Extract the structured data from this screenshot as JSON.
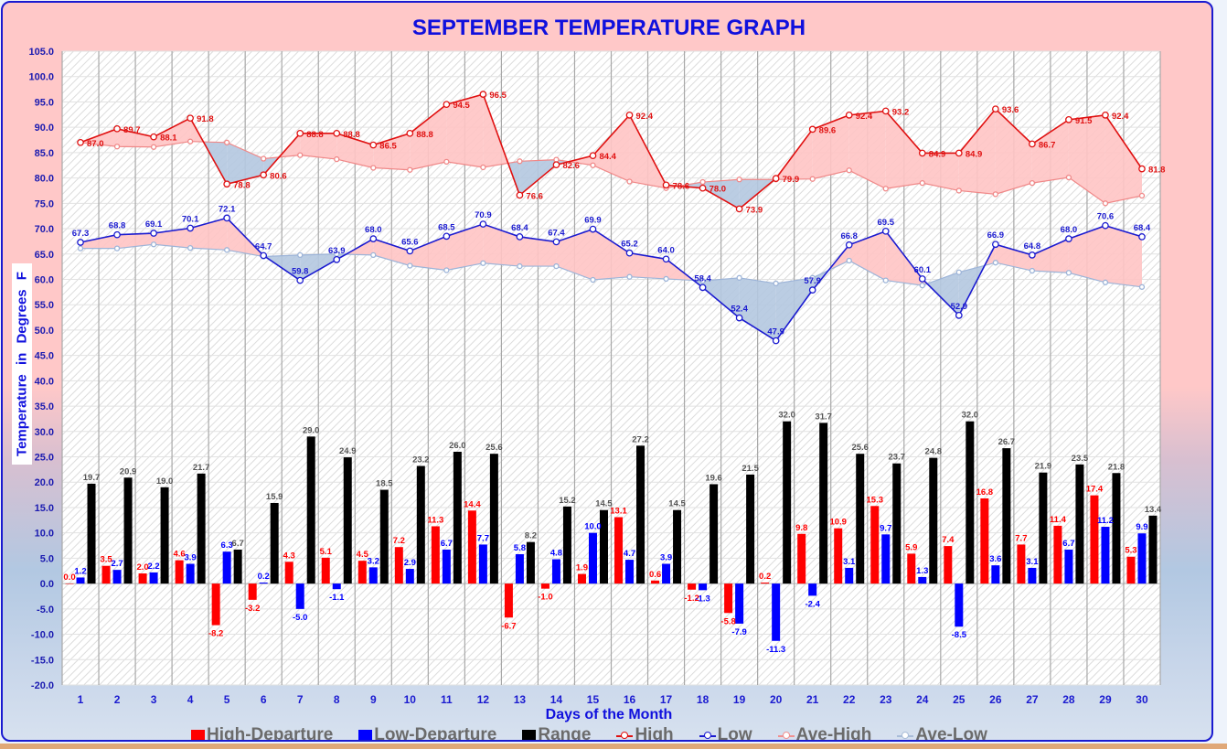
{
  "chart_data": {
    "type": "bar+line",
    "title": "SEPTEMBER TEMPERATURE GRAPH",
    "xlabel": "Days of the Month",
    "ylabel": "Temperature in Degrees F",
    "ylim": [
      -20,
      105
    ],
    "ytick_step": 5,
    "yticks": [
      "105.0",
      "100.0",
      "95.0",
      "90.0",
      "85.0",
      "80.0",
      "75.0",
      "70.0",
      "65.0",
      "60.0",
      "55.0",
      "50.0",
      "45.0",
      "40.0",
      "35.0",
      "30.0",
      "25.0",
      "20.0",
      "15.0",
      "10.0",
      "5.0",
      "0.0",
      "-5.0",
      "-10.0",
      "-15.0",
      "-20.0"
    ],
    "categories": [
      "1",
      "2",
      "3",
      "4",
      "5",
      "6",
      "7",
      "8",
      "9",
      "10",
      "11",
      "12",
      "13",
      "14",
      "15",
      "16",
      "17",
      "18",
      "19",
      "20",
      "21",
      "22",
      "23",
      "24",
      "25",
      "26",
      "27",
      "28",
      "29",
      "30"
    ],
    "grid": true,
    "legend_position": "bottom",
    "series": [
      {
        "name": "High-Departure",
        "kind": "bar",
        "color": "#ff0000",
        "values": [
          0.0,
          3.5,
          2.0,
          4.6,
          -8.2,
          -3.2,
          4.3,
          5.1,
          4.5,
          7.2,
          11.3,
          14.4,
          -6.7,
          -1.0,
          1.9,
          13.1,
          0.6,
          -1.2,
          -5.8,
          0.2,
          9.8,
          10.9,
          15.3,
          5.9,
          7.4,
          16.8,
          7.7,
          11.4,
          17.4,
          5.3
        ]
      },
      {
        "name": "Low-Departure",
        "kind": "bar",
        "color": "#0000ff",
        "values": [
          1.2,
          2.7,
          2.2,
          3.9,
          6.3,
          0.2,
          -5.0,
          -1.1,
          3.2,
          2.9,
          6.7,
          7.7,
          5.8,
          4.8,
          10.0,
          4.7,
          3.9,
          -1.3,
          -7.9,
          -11.3,
          -2.4,
          3.1,
          9.7,
          1.3,
          -8.5,
          3.6,
          3.1,
          6.7,
          11.2,
          9.9
        ]
      },
      {
        "name": "Range",
        "kind": "bar",
        "color": "#000000",
        "values": [
          19.7,
          20.9,
          19.0,
          21.7,
          6.7,
          15.9,
          29.0,
          24.9,
          18.5,
          23.2,
          26.0,
          25.6,
          8.2,
          15.2,
          14.5,
          27.2,
          14.5,
          19.6,
          21.5,
          32.0,
          31.7,
          25.6,
          23.7,
          24.8,
          32.0,
          26.7,
          21.9,
          23.5,
          21.8,
          13.4
        ]
      },
      {
        "name": "High",
        "kind": "line",
        "color": "#e01010",
        "values": [
          87.0,
          89.7,
          88.1,
          91.8,
          78.8,
          80.6,
          88.8,
          88.8,
          86.5,
          88.8,
          94.5,
          96.5,
          76.6,
          82.6,
          84.4,
          92.4,
          78.6,
          78.0,
          73.9,
          79.9,
          89.6,
          92.4,
          93.2,
          84.9,
          84.9,
          93.6,
          86.7,
          91.5,
          92.4,
          81.8
        ]
      },
      {
        "name": "Low",
        "kind": "line",
        "color": "#1a1ad0",
        "values": [
          67.3,
          68.8,
          69.1,
          70.1,
          72.1,
          64.7,
          59.8,
          63.9,
          68.0,
          65.6,
          68.5,
          70.9,
          68.4,
          67.4,
          69.9,
          65.2,
          64.0,
          58.4,
          52.4,
          47.9,
          57.9,
          66.8,
          69.5,
          60.1,
          52.9,
          66.9,
          64.8,
          68.0,
          70.6,
          68.4
        ]
      },
      {
        "name": "Ave-High",
        "kind": "line",
        "color": "#f08888",
        "values": [
          87.0,
          86.2,
          86.1,
          87.2,
          87.0,
          83.8,
          84.5,
          83.7,
          82.0,
          81.6,
          83.2,
          82.1,
          83.3,
          83.6,
          82.5,
          79.3,
          78.0,
          79.2,
          79.7,
          79.7,
          79.8,
          81.5,
          77.9,
          79.0,
          77.5,
          76.8,
          79.0,
          80.1,
          75.0,
          76.5
        ]
      },
      {
        "name": "Ave-Low",
        "kind": "line",
        "color": "#9db4d8",
        "values": [
          66.1,
          66.1,
          66.9,
          66.2,
          65.8,
          64.5,
          64.8,
          65.0,
          64.8,
          62.7,
          61.8,
          63.2,
          62.6,
          62.6,
          59.9,
          60.5,
          60.1,
          59.7,
          60.3,
          59.2,
          60.3,
          63.7,
          59.8,
          58.8,
          61.4,
          63.3,
          61.7,
          61.3,
          59.4,
          58.5
        ]
      }
    ],
    "legend": [
      {
        "label": "High-Departure",
        "marker": "square",
        "color": "#ff0000"
      },
      {
        "label": "Low-Departure",
        "marker": "square",
        "color": "#0000ff"
      },
      {
        "label": "Range",
        "marker": "square",
        "color": "#000000"
      },
      {
        "label": "High",
        "marker": "line-circle",
        "color": "#e01010"
      },
      {
        "label": "Low",
        "marker": "line-circle",
        "color": "#1a1ad0"
      },
      {
        "label": "Ave-High",
        "marker": "line-circle",
        "color": "#f09090"
      },
      {
        "label": "Ave-Low",
        "marker": "line-circle",
        "color": "#a8bcd8"
      }
    ],
    "band_colors": {
      "above_average": "#ffc4c4",
      "below_average": "#b4c8e0"
    }
  }
}
